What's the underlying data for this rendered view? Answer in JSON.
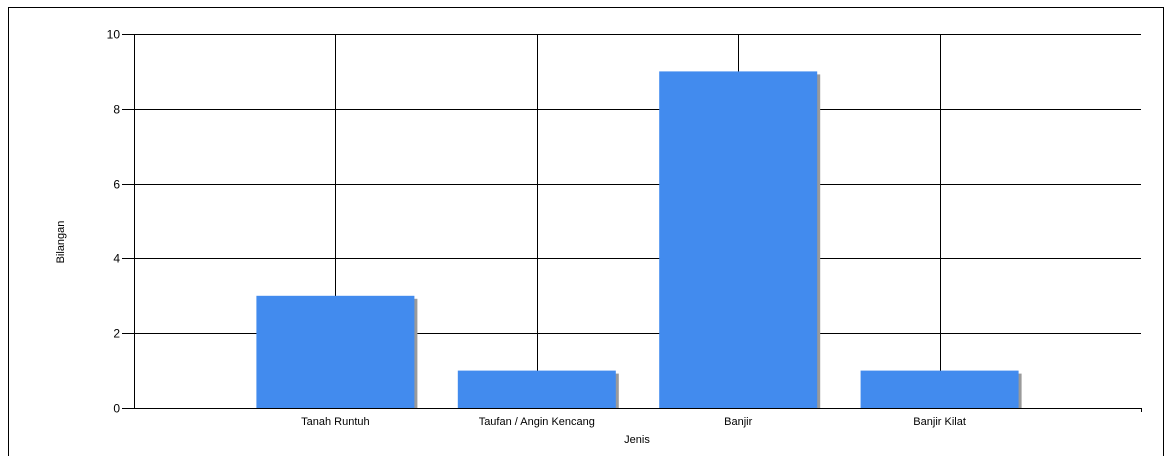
{
  "chart_data": {
    "type": "bar",
    "title": "",
    "xlabel": "Jenis",
    "ylabel": "Bilangan",
    "categories": [
      "Tanah Runtuh",
      "Taufan / Angin Kencang",
      "Banjir",
      "Banjir Kilat"
    ],
    "values": [
      3,
      1,
      9,
      1
    ],
    "ylim": [
      0,
      10
    ],
    "yticks": [
      "0",
      "2",
      "4",
      "6",
      "8",
      "10"
    ],
    "grid": true,
    "legend": "none",
    "colors": {
      "bar": "#428bee",
      "shadow": "#9a9a9a",
      "grid": "#000000"
    }
  }
}
